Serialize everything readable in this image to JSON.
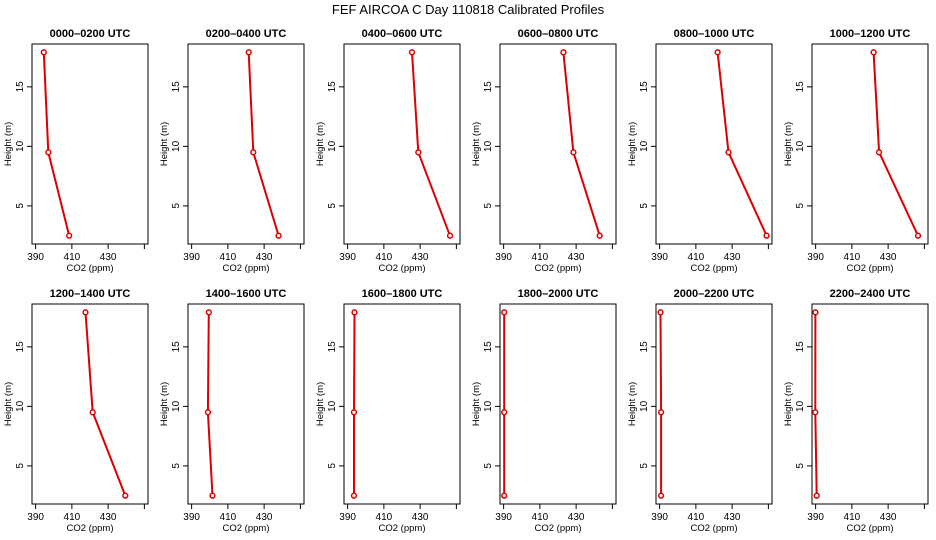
{
  "title": "FEF AIRCOA C  Day 110818  Calibrated Profiles",
  "chart_data": {
    "type": "line",
    "xlabel": "CO2 (ppm)",
    "ylabel": "Height (m)",
    "xticks": [
      390,
      410,
      430
    ],
    "yticks": [
      5,
      10,
      15
    ],
    "xlim": [
      388,
      452
    ],
    "ylim": [
      1.8,
      18.6
    ],
    "line_color": "#dd0000",
    "panels": [
      {
        "title": "0000–0200 UTC",
        "points": [
          {
            "x": 408.5,
            "y": 2.5
          },
          {
            "x": 397,
            "y": 9.5
          },
          {
            "x": 394.5,
            "y": 17.9
          }
        ]
      },
      {
        "title": "0200–0400 UTC",
        "points": [
          {
            "x": 438,
            "y": 2.5
          },
          {
            "x": 424,
            "y": 9.5
          },
          {
            "x": 421.5,
            "y": 17.9
          }
        ]
      },
      {
        "title": "0400–0600 UTC",
        "points": [
          {
            "x": 446.5,
            "y": 2.5
          },
          {
            "x": 429,
            "y": 9.5
          },
          {
            "x": 425.5,
            "y": 17.9
          }
        ]
      },
      {
        "title": "0600–0800 UTC",
        "points": [
          {
            "x": 443,
            "y": 2.5
          },
          {
            "x": 428.5,
            "y": 9.5
          },
          {
            "x": 423,
            "y": 17.9
          }
        ]
      },
      {
        "title": "0800–1000 UTC",
        "points": [
          {
            "x": 449,
            "y": 2.5
          },
          {
            "x": 428,
            "y": 9.5
          },
          {
            "x": 422,
            "y": 17.9
          }
        ]
      },
      {
        "title": "1000–1200 UTC",
        "points": [
          {
            "x": 446.5,
            "y": 2.5
          },
          {
            "x": 425,
            "y": 9.5
          },
          {
            "x": 422,
            "y": 17.9
          }
        ]
      },
      {
        "title": "1200–1400 UTC",
        "points": [
          {
            "x": 439.5,
            "y": 2.5
          },
          {
            "x": 421.5,
            "y": 9.5
          },
          {
            "x": 417.5,
            "y": 17.9
          }
        ]
      },
      {
        "title": "1400–1600 UTC",
        "points": [
          {
            "x": 401.5,
            "y": 2.5
          },
          {
            "x": 399,
            "y": 9.5
          },
          {
            "x": 399.5,
            "y": 17.9
          }
        ]
      },
      {
        "title": "1600–1800 UTC",
        "points": [
          {
            "x": 393.5,
            "y": 2.5
          },
          {
            "x": 393.5,
            "y": 9.5
          },
          {
            "x": 393.8,
            "y": 17.9
          }
        ]
      },
      {
        "title": "1800–2000 UTC",
        "points": [
          {
            "x": 390.3,
            "y": 2.5
          },
          {
            "x": 390.3,
            "y": 9.5
          },
          {
            "x": 390.3,
            "y": 17.9
          }
        ]
      },
      {
        "title": "2000–2200 UTC",
        "points": [
          {
            "x": 390.8,
            "y": 2.5
          },
          {
            "x": 390.8,
            "y": 9.5
          },
          {
            "x": 390.5,
            "y": 17.9
          }
        ]
      },
      {
        "title": "2200–2400 UTC",
        "points": [
          {
            "x": 390.6,
            "y": 2.5
          },
          {
            "x": 389.8,
            "y": 9.5
          },
          {
            "x": 389.9,
            "y": 17.9
          }
        ]
      }
    ]
  }
}
